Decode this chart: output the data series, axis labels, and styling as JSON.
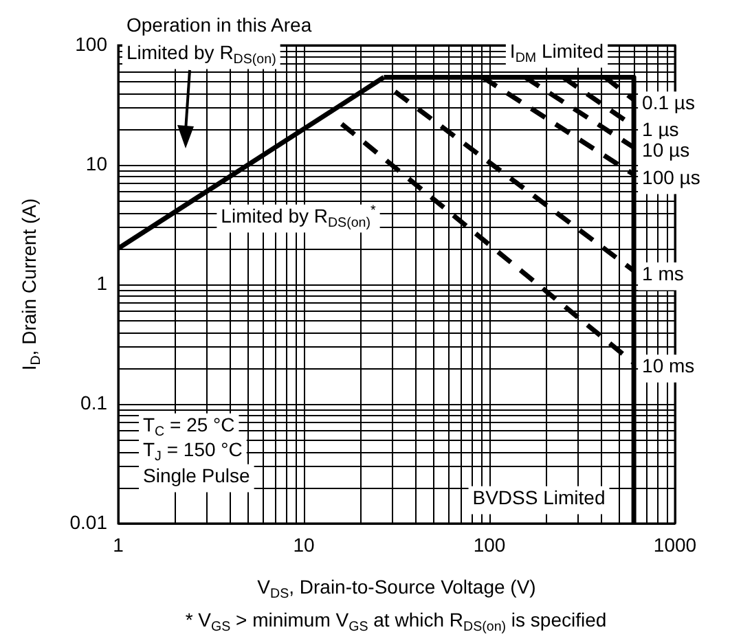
{
  "chart_data": {
    "type": "line",
    "xlabel": "V$_{DS}$, Drain-to-Source Voltage (V)",
    "ylabel": "I$_{D}$, Drain Current (A)",
    "log": "xy",
    "grid": true,
    "legend": false,
    "xlim": [
      1,
      1000
    ],
    "ylim": [
      0.01,
      100
    ],
    "xticks": [
      1,
      {
        "value": 2,
        "label": null
      },
      {
        "value": 3,
        "label": null
      },
      {
        "value": 4,
        "label": null
      },
      {
        "value": 5,
        "label": null
      },
      {
        "value": 6,
        "label": null
      },
      {
        "value": 7,
        "label": null
      },
      {
        "value": 8,
        "label": null
      },
      {
        "value": 9,
        "label": null
      },
      10,
      {
        "value": 20,
        "label": null
      },
      {
        "value": 30,
        "label": null
      },
      {
        "value": 40,
        "label": null
      },
      {
        "value": 50,
        "label": null
      },
      {
        "value": 60,
        "label": null
      },
      {
        "value": 70,
        "label": null
      },
      {
        "value": 80,
        "label": null
      },
      {
        "value": 90,
        "label": null
      },
      100,
      {
        "value": 200,
        "label": null
      },
      {
        "value": 300,
        "label": null
      },
      {
        "value": 400,
        "label": null
      },
      {
        "value": 500,
        "label": null
      },
      {
        "value": 600,
        "label": null
      },
      {
        "value": 700,
        "label": null
      },
      {
        "value": 800,
        "label": null
      },
      {
        "value": 900,
        "label": null
      },
      1000
    ],
    "yticks": [
      0.01,
      {
        "value": 0.02,
        "label": null
      },
      {
        "value": 0.03,
        "label": null
      },
      {
        "value": 0.04,
        "label": null
      },
      {
        "value": 0.05,
        "label": null
      },
      {
        "value": 0.06,
        "label": null
      },
      {
        "value": 0.07,
        "label": null
      },
      {
        "value": 0.08,
        "label": null
      },
      {
        "value": 0.09,
        "label": null
      },
      0.1,
      {
        "value": 0.2,
        "label": null
      },
      {
        "value": 0.3,
        "label": null
      },
      {
        "value": 0.4,
        "label": null
      },
      {
        "value": 0.5,
        "label": null
      },
      {
        "value": 0.6,
        "label": null
      },
      {
        "value": 0.7,
        "label": null
      },
      {
        "value": 0.8,
        "label": null
      },
      {
        "value": 0.9,
        "label": null
      },
      1,
      {
        "value": 2,
        "label": null
      },
      {
        "value": 3,
        "label": null
      },
      {
        "value": 4,
        "label": null
      },
      {
        "value": 5,
        "label": null
      },
      {
        "value": 6,
        "label": null
      },
      {
        "value": 7,
        "label": null
      },
      {
        "value": 8,
        "label": null
      },
      {
        "value": 9,
        "label": null
      },
      10,
      {
        "value": 20,
        "label": null
      },
      {
        "value": 30,
        "label": null
      },
      {
        "value": 40,
        "label": null
      },
      {
        "value": 50,
        "label": null
      },
      {
        "value": 60,
        "label": null
      },
      {
        "value": 70,
        "label": null
      },
      {
        "value": 80,
        "label": null
      },
      {
        "value": 90,
        "label": null
      },
      100
    ],
    "series": [
      {
        "color": "#000000",
        "line_style": "solid",
        "x": [
          1,
          27
        ],
        "values": [
          2,
          54
        ]
      },
      {
        "color": "#000000",
        "line_style": "solid",
        "x": [
          27,
          600
        ],
        "values": [
          54,
          54
        ]
      },
      {
        "color": "#000000",
        "line_style": "solid",
        "x": [
          600,
          600
        ],
        "values": [
          54,
          0.01
        ]
      },
      {
        "name": "0.1 µs",
        "color": "#000000",
        "line_style": "dashed",
        "x": [
          420,
          600
        ],
        "values": [
          54,
          35
        ]
      },
      {
        "name": "1 µs",
        "color": "#000000",
        "line_style": "dashed",
        "x": [
          250,
          600
        ],
        "values": [
          54,
          21
        ]
      },
      {
        "name": "10 µs",
        "color": "#000000",
        "line_style": "dashed",
        "x": [
          156,
          600
        ],
        "values": [
          54,
          14
        ]
      },
      {
        "name": "100 µs",
        "color": "#000000",
        "line_style": "dashed",
        "x": [
          92,
          600
        ],
        "values": [
          54,
          8.3
        ]
      },
      {
        "name": "1 ms",
        "color": "#000000",
        "line_style": "dashed",
        "x": [
          31,
          600
        ],
        "values": [
          41,
          1.3
        ]
      },
      {
        "name": "10 ms",
        "color": "#000000",
        "line_style": "dashed",
        "x": [
          16,
          600
        ],
        "values": [
          22,
          0.22
        ]
      }
    ],
    "annotations": [
      "Operation in this Area",
      "Limited by R$_{DS(on)}$",
      "T$_{C}$ = 25 °C",
      "T$_{J}$ = 150 °C",
      "Single Pulse",
      "* V$_{GS}$ > minimum V$_{GS}$ at which R$_{DS(on)}$ is specified",
      "Limited by R$_{DS(on)}$$^{*}$",
      "I$_{DM}$ Limited",
      "BVDSS Limited"
    ]
  }
}
